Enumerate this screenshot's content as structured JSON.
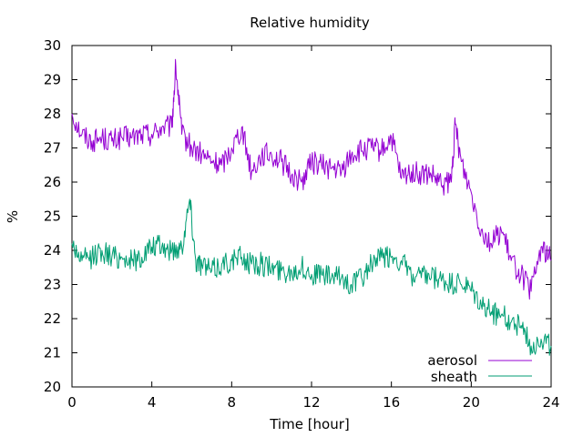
{
  "chart_data": {
    "type": "line",
    "title": "Relative humidity",
    "xlabel": "Time [hour]",
    "ylabel": "%",
    "xlim": [
      0,
      24
    ],
    "ylim": [
      20,
      30
    ],
    "x_ticks": [
      "0",
      "4",
      "8",
      "12",
      "16",
      "20",
      "24"
    ],
    "y_ticks": [
      "20",
      "21",
      "22",
      "23",
      "24",
      "25",
      "26",
      "27",
      "28",
      "29",
      "30"
    ],
    "grid": false,
    "legend_position": "bottom-right",
    "series": [
      {
        "name": "aerosol",
        "color": "#9400d3",
        "x": [
          0,
          0.5,
          1,
          1.5,
          2,
          2.5,
          3,
          3.5,
          4,
          4.5,
          5,
          5.2,
          5.5,
          6,
          6.5,
          7,
          7.5,
          8,
          8.5,
          9,
          9.5,
          10,
          10.5,
          11,
          11.5,
          12,
          12.5,
          13,
          13.5,
          14,
          14.5,
          15,
          15.5,
          16,
          16.5,
          17,
          17.5,
          18,
          18.5,
          19,
          19.2,
          19.5,
          20,
          20.5,
          21,
          21.5,
          22,
          22.5,
          23,
          23.5,
          24
        ],
        "y": [
          28.0,
          27.4,
          27.2,
          27.3,
          27.2,
          27.3,
          27.3,
          27.4,
          27.4,
          27.6,
          27.6,
          29.4,
          27.4,
          27.0,
          26.8,
          26.6,
          26.5,
          27.0,
          27.6,
          26.3,
          26.8,
          26.8,
          26.6,
          26.2,
          26.0,
          26.6,
          26.5,
          26.4,
          26.3,
          26.8,
          26.9,
          27.0,
          26.9,
          27.3,
          26.1,
          26.3,
          26.2,
          26.2,
          25.9,
          26.0,
          27.7,
          26.6,
          25.7,
          24.6,
          24.2,
          24.6,
          23.7,
          23.3,
          22.8,
          24.1,
          23.7
        ]
      },
      {
        "name": "sheath",
        "color": "#009e73",
        "x": [
          0,
          0.5,
          1,
          1.5,
          2,
          2.5,
          3,
          3.5,
          4,
          4.5,
          5,
          5.5,
          5.9,
          6.2,
          6.5,
          7,
          7.5,
          8,
          8.5,
          9,
          9.5,
          10,
          10.5,
          11,
          11.5,
          12,
          12.5,
          13,
          13.5,
          14,
          14.5,
          15,
          15.5,
          16,
          16.5,
          17,
          17.5,
          18,
          18.5,
          19,
          19.5,
          20,
          20.5,
          21,
          21.5,
          22,
          22.5,
          23,
          23.5,
          24
        ],
        "y": [
          24.2,
          23.7,
          23.8,
          24.0,
          23.8,
          23.8,
          23.7,
          23.8,
          24.1,
          24.1,
          24.0,
          24.1,
          25.5,
          23.7,
          23.6,
          23.4,
          23.6,
          23.7,
          23.8,
          23.6,
          23.6,
          23.5,
          23.4,
          23.4,
          23.5,
          23.3,
          23.3,
          23.2,
          23.2,
          23.0,
          23.2,
          23.6,
          23.8,
          23.8,
          23.7,
          23.2,
          23.2,
          23.2,
          23.1,
          23.0,
          23.0,
          22.8,
          22.4,
          22.2,
          22.1,
          21.9,
          21.8,
          21.2,
          21.4,
          21.2
        ]
      }
    ]
  }
}
